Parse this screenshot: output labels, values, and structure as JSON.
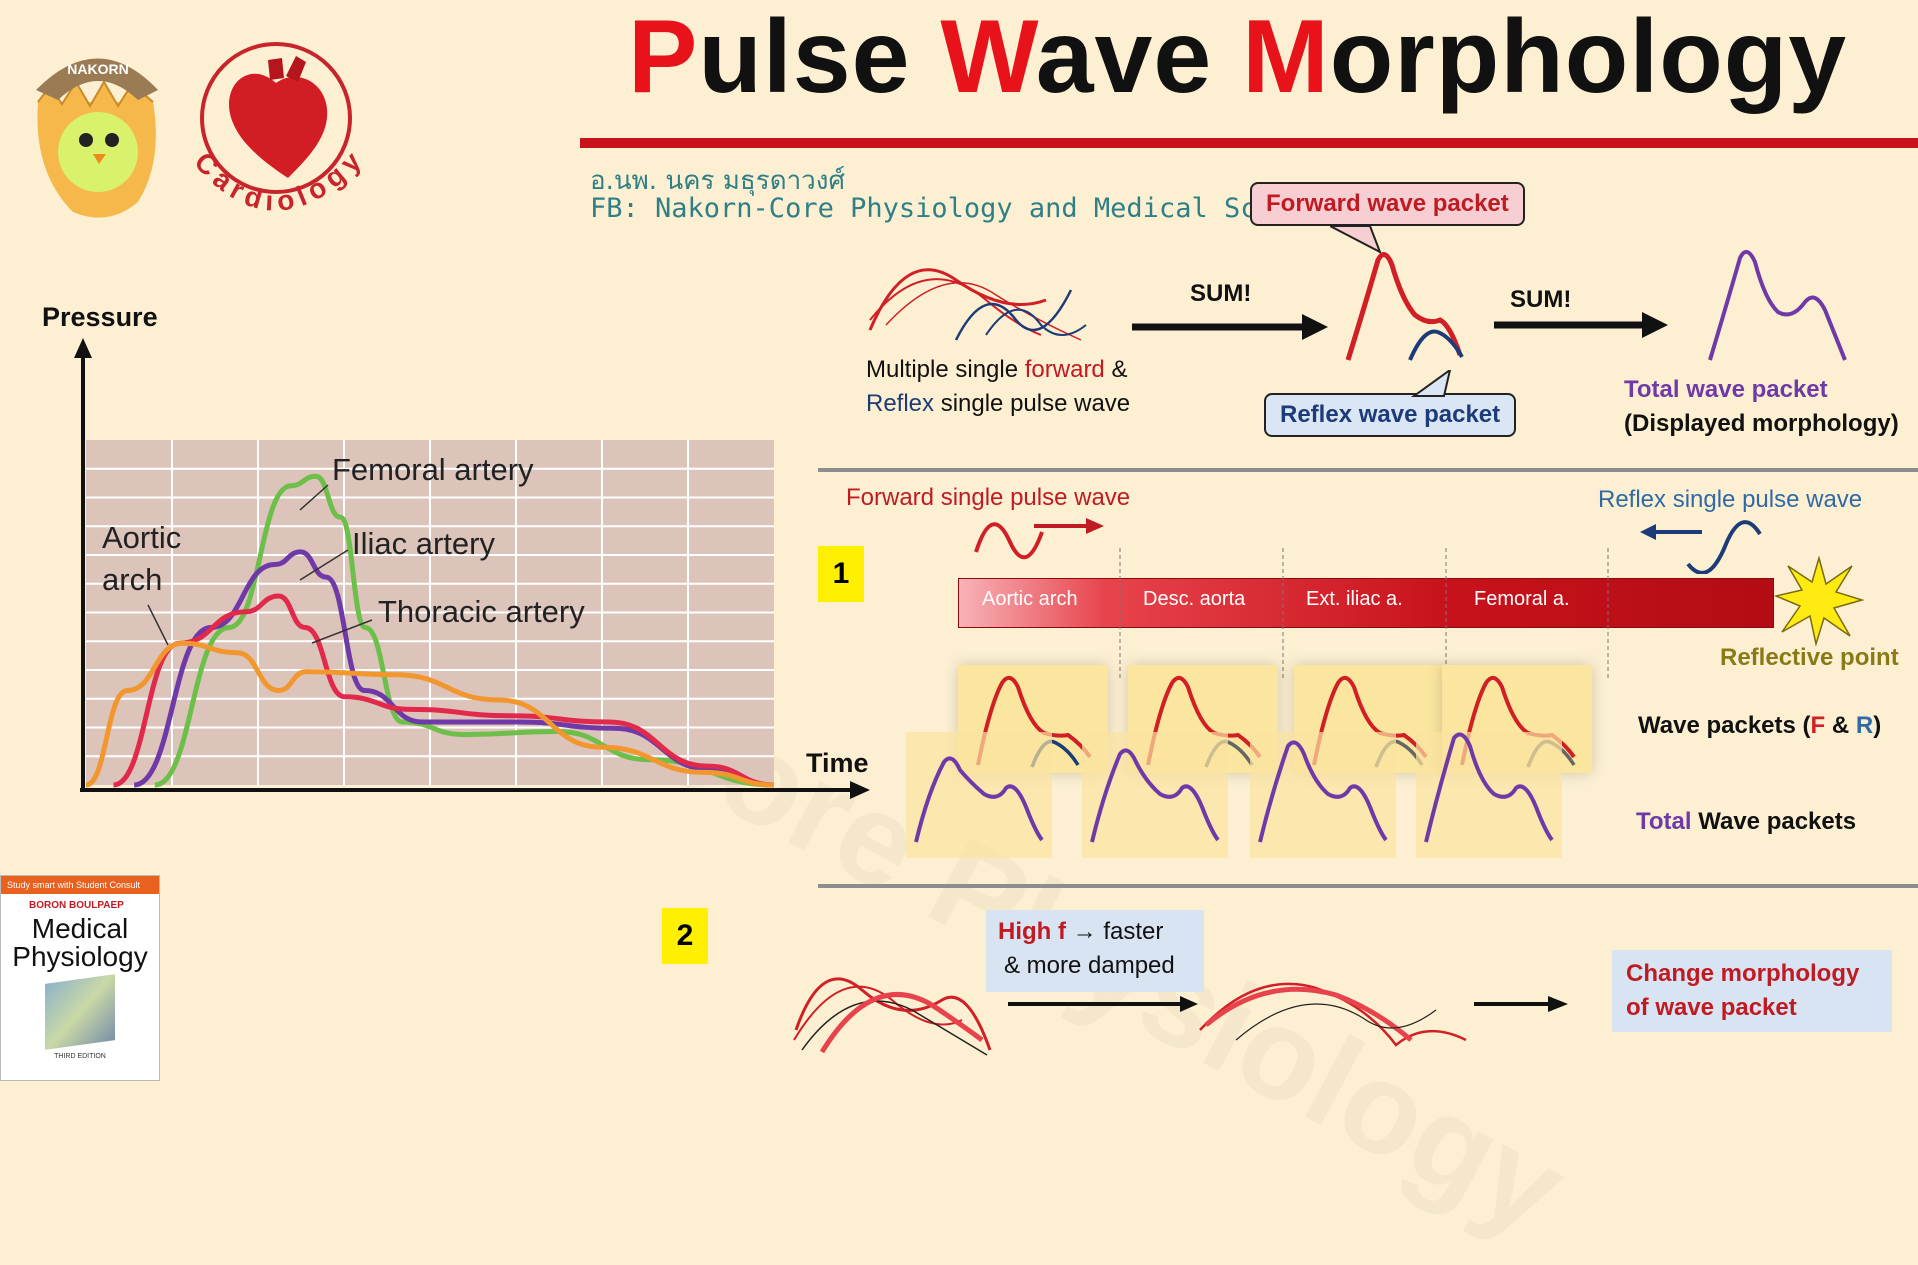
{
  "title": {
    "parts": [
      {
        "cap": "P",
        "rest": "ulse "
      },
      {
        "cap": "W",
        "rest": "ave "
      },
      {
        "cap": "M",
        "rest": "orphology"
      }
    ]
  },
  "logos": {
    "nakorn_text": "NAKORN",
    "cardiology_text": "Cardiology",
    "watermark": "Nakorn-Core Physiology"
  },
  "author": {
    "name": "อ.นพ. นคร มธุรดาวงศ์",
    "fb": "FB: Nakorn-Core Physiology and Medical Science"
  },
  "top_section": {
    "forward_callout": "Forward wave packet",
    "reflex_callout": "Reflex wave packet",
    "sum1": "SUM!",
    "sum2": "SUM!",
    "multi_line1_pre": "Multiple single ",
    "multi_line1_hl": "forward",
    "multi_line1_post": " &",
    "multi_line2_hl": "Reflex",
    "multi_line2_post": " single pulse wave",
    "total_label": "Total wave packet",
    "displayed_label": "(Displayed morphology)"
  },
  "chart": {
    "ylabel": "Pressure",
    "xlabel": "Time",
    "series_labels": {
      "femoral": "Femoral artery",
      "iliac": "Iliac artery",
      "thoracic": "Thoracic artery",
      "aortic_line1": "Aortic",
      "aortic_line2": "arch"
    }
  },
  "chart_data": {
    "type": "line",
    "title": "",
    "xlabel": "Time",
    "ylabel": "Pressure",
    "grid": true,
    "series": [
      {
        "name": "Femoral artery",
        "color": "#6cc04a",
        "x": [
          0,
          0.12,
          0.22,
          0.26,
          0.3,
          0.34,
          0.4,
          0.5,
          0.65,
          0.8,
          1.0
        ],
        "y": [
          0,
          0.5,
          0.95,
          0.98,
          0.85,
          0.5,
          0.2,
          0.16,
          0.17,
          0.08,
          0.0
        ]
      },
      {
        "name": "Iliac artery",
        "color": "#6f3aa8",
        "x": [
          0,
          0.12,
          0.22,
          0.26,
          0.3,
          0.36,
          0.45,
          0.6,
          0.75,
          0.9,
          1.0
        ],
        "y": [
          0,
          0.5,
          0.7,
          0.74,
          0.66,
          0.3,
          0.2,
          0.2,
          0.18,
          0.05,
          0.0
        ]
      },
      {
        "name": "Thoracic artery",
        "color": "#e0294b",
        "x": [
          0,
          0.1,
          0.2,
          0.25,
          0.29,
          0.35,
          0.45,
          0.6,
          0.75,
          0.9,
          1.0
        ],
        "y": [
          0,
          0.45,
          0.55,
          0.6,
          0.5,
          0.28,
          0.24,
          0.22,
          0.2,
          0.06,
          0.0
        ]
      },
      {
        "name": "Aortic arch",
        "color": "#f2962e",
        "x": [
          0,
          0.06,
          0.14,
          0.22,
          0.28,
          0.32,
          0.45,
          0.6,
          0.75,
          0.9,
          1.0
        ],
        "y": [
          0,
          0.3,
          0.45,
          0.42,
          0.3,
          0.36,
          0.35,
          0.27,
          0.12,
          0.04,
          0.0
        ]
      }
    ]
  },
  "section1": {
    "badge": "1",
    "forward_single": "Forward single pulse wave",
    "reflex_single": "Reflex single pulse wave",
    "segments": [
      "Aortic arch",
      "Desc. aorta",
      "Ext. iliac a.",
      "Femoral a."
    ],
    "reflective_point": "Reflective point",
    "wave_packets_pre": "Wave packets (",
    "wave_packets_f": "F",
    "wave_packets_mid": " & ",
    "wave_packets_r": "R",
    "wave_packets_post": ")",
    "total_hl": "Total",
    "total_rest": " Wave packets"
  },
  "section2": {
    "badge": "2",
    "high_f": "High f",
    "arrow_text": " → faster",
    "damped": "& more damped",
    "change_line1": "Change morphology",
    "change_line2": "of wave packet"
  },
  "book": {
    "top_strip": "Study smart with Student Consult",
    "authors": "BORON  BOULPAEP",
    "title_line1": "Medical",
    "title_line2": "Physiology",
    "edition": "THIRD EDITION"
  },
  "colors": {
    "accent_red": "#e8121b",
    "forward_red": "#d11f26",
    "reflex_navy": "#1c3b78",
    "total_purple": "#6f3aa8",
    "teal": "#2f7f86",
    "gold": "#8a7a16"
  }
}
